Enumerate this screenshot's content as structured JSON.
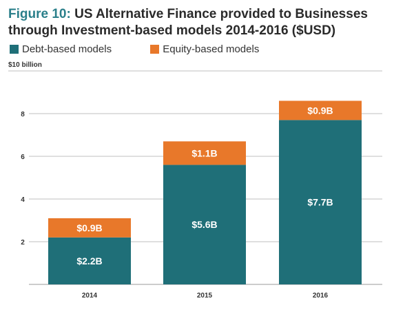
{
  "title": {
    "prefix": "Figure 10:",
    "text": "US Alternative Finance provided to Businesses through Investment-based models 2014-2016 ($USD)"
  },
  "colors": {
    "debt": "#1f6f78",
    "equity": "#e8782a",
    "title_accent": "#2a7f8a",
    "grid": "#bfbfbf",
    "label_text": "#ffffff"
  },
  "chart_data": {
    "type": "bar",
    "stacked": true,
    "categories": [
      "2014",
      "2015",
      "2016"
    ],
    "series": [
      {
        "name": "Debt-based models",
        "values": [
          2.2,
          5.6,
          7.7
        ],
        "labels": [
          "$2.2B",
          "$5.6B",
          "$7.7B"
        ]
      },
      {
        "name": "Equity-based models",
        "values": [
          0.9,
          1.1,
          0.9
        ],
        "labels": [
          "$0.9B",
          "$1.1B",
          "$0.9B"
        ]
      }
    ],
    "y_ticks": [
      2,
      4,
      6,
      8
    ],
    "y_top_label": "$10 billion",
    "ylim": [
      0,
      10
    ],
    "grid": true,
    "legend_position": "top-left"
  }
}
